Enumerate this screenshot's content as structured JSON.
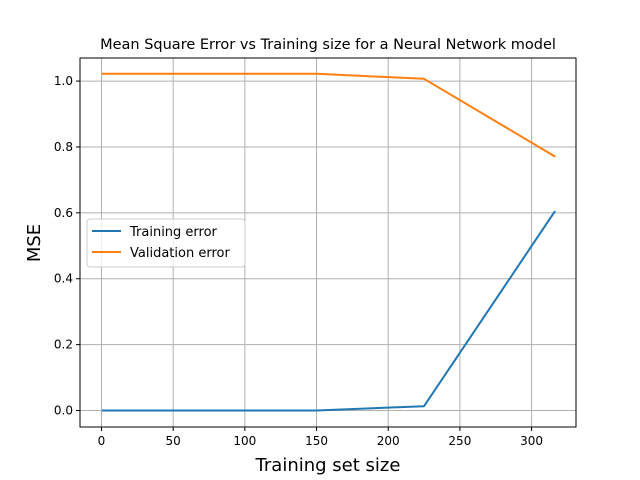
{
  "chart_data": {
    "type": "line",
    "title": "Mean Square Error vs Training size for a Neural Network model",
    "xlabel": "Training set size",
    "ylabel": "MSE",
    "xlim": [
      -15,
      331
    ],
    "ylim": [
      -0.05,
      1.07
    ],
    "xticks": [
      0,
      50,
      100,
      150,
      200,
      250,
      300
    ],
    "yticks": [
      0.0,
      0.2,
      0.4,
      0.6,
      0.8,
      1.0
    ],
    "yticks_format": "1dp",
    "grid": true,
    "legend": "center-left",
    "series": [
      {
        "name": "Training error",
        "color": "#1f77b4",
        "x": [
          1,
          150,
          225,
          316
        ],
        "y": [
          0.0,
          0.0,
          0.013,
          0.603
        ]
      },
      {
        "name": "Validation error",
        "color": "#ff7f0e",
        "x": [
          1,
          150,
          225,
          316
        ],
        "y": [
          1.022,
          1.022,
          1.007,
          0.772
        ]
      }
    ]
  }
}
